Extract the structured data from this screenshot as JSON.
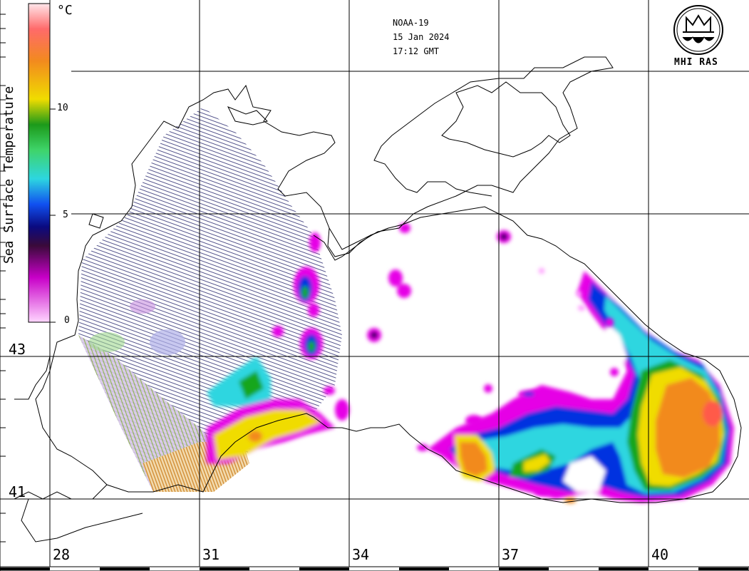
{
  "satellite": "NOAA-19",
  "date": "15 Jan 2024",
  "time": "17:12 GMT",
  "logo_text": "MHI RAS",
  "colorbar": {
    "title": "Sea Surface Temperature",
    "unit": "°C",
    "ticks": [
      "10",
      "5",
      "0"
    ]
  },
  "latitude_labels": [
    "43",
    "41"
  ],
  "longitude_labels": [
    "28",
    "31",
    "34",
    "37",
    "40"
  ],
  "colors": {
    "coast": "#000000",
    "grid": "#000000",
    "cold": "#e600e6",
    "blue": "#0030e0",
    "cyan": "#2dd6e0",
    "green": "#14a61a",
    "yellow": "#f0dc00",
    "orange": "#f28a1e"
  }
}
